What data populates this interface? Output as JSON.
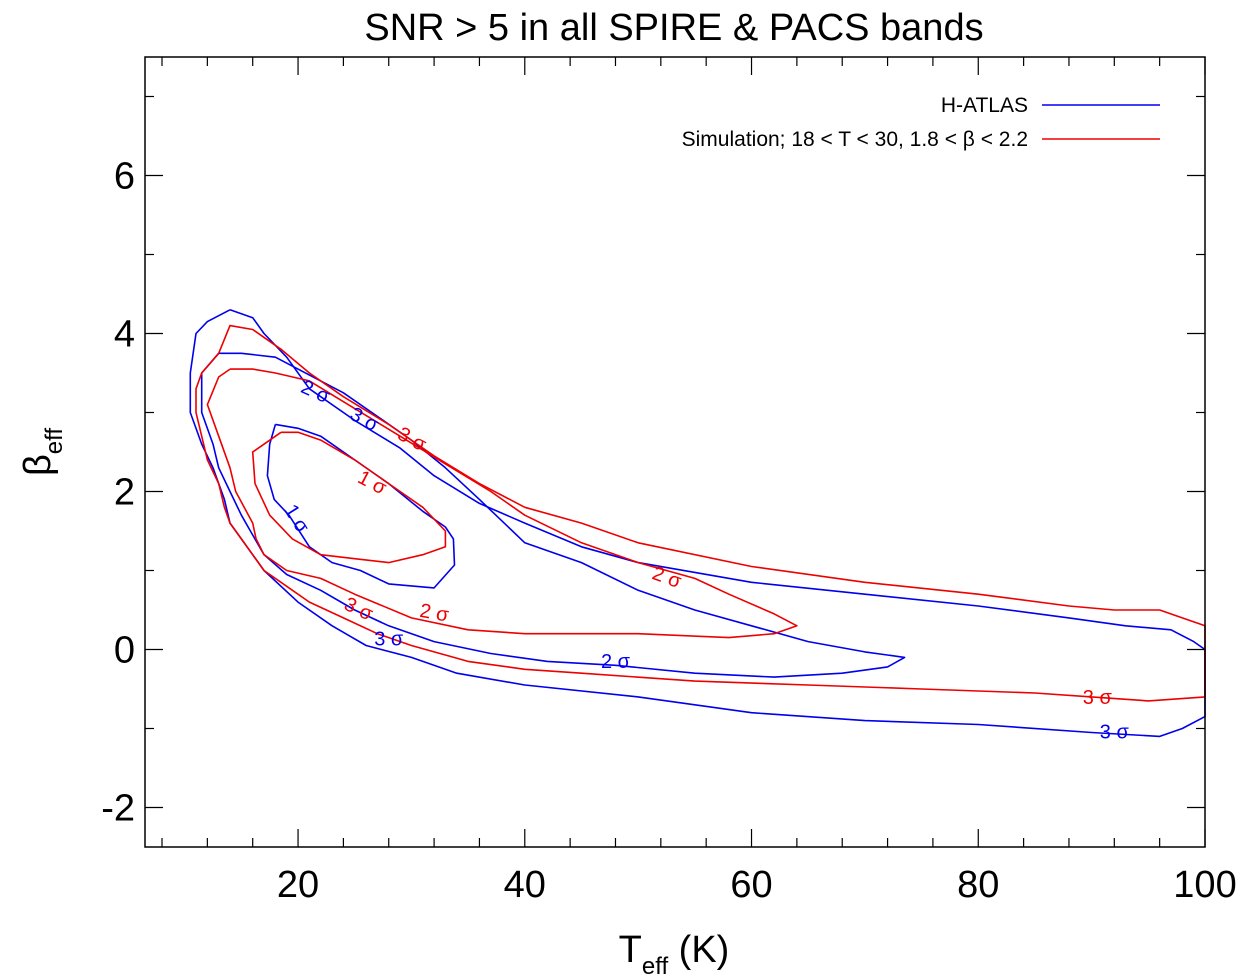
{
  "chart_data": {
    "type": "line",
    "title": "SNR > 5 in all SPIRE & PACS bands",
    "xlabel": {
      "main": "T",
      "sub": "eff",
      "suffix": " (K)"
    },
    "ylabel": {
      "main": "β",
      "sub": "eff"
    },
    "xlim": [
      6.5,
      100
    ],
    "ylim": [
      -2.5,
      7.5
    ],
    "x_ticks": [
      20,
      40,
      60,
      80,
      100
    ],
    "y_ticks": [
      -2,
      0,
      2,
      4,
      6
    ],
    "x_minor_step": 4,
    "y_minor_step": 1,
    "grid": false,
    "legend_position": "top-right",
    "colors": {
      "h_atlas": "#0000ee",
      "simulation": "#ee0000"
    },
    "series": [
      {
        "name": "H-ATLAS",
        "color_key": "h_atlas",
        "contours": [
          {
            "level": "1 σ",
            "points": [
              [
                18,
                2.85
              ],
              [
                17.5,
                2.6
              ],
              [
                17.3,
                2.2
              ],
              [
                17.9,
                1.9
              ],
              [
                19.2,
                1.7
              ],
              [
                21,
                1.3
              ],
              [
                23,
                1.1
              ],
              [
                25.5,
                1.0
              ],
              [
                28,
                0.83
              ],
              [
                32,
                0.78
              ],
              [
                33.8,
                1.07
              ],
              [
                33.7,
                1.4
              ],
              [
                33,
                1.55
              ],
              [
                31,
                1.75
              ],
              [
                28,
                2.1
              ],
              [
                25,
                2.4
              ],
              [
                22,
                2.7
              ],
              [
                20,
                2.8
              ],
              [
                18,
                2.85
              ]
            ]
          },
          {
            "level": "2 σ",
            "points": [
              [
                13,
                3.75
              ],
              [
                11.5,
                3.5
              ],
              [
                11.5,
                3.0
              ],
              [
                12.5,
                2.6
              ],
              [
                13,
                2.3
              ],
              [
                14,
                2.0
              ],
              [
                15,
                1.7
              ],
              [
                15.8,
                1.5
              ],
              [
                17,
                1.2
              ],
              [
                19,
                0.95
              ],
              [
                22,
                0.75
              ],
              [
                25,
                0.5
              ],
              [
                28,
                0.3
              ],
              [
                32,
                0.1
              ],
              [
                37,
                -0.05
              ],
              [
                42,
                -0.15
              ],
              [
                48,
                -0.2
              ],
              [
                55,
                -0.3
              ],
              [
                62,
                -0.35
              ],
              [
                68,
                -0.3
              ],
              [
                72,
                -0.22
              ],
              [
                73.5,
                -0.1
              ],
              [
                70,
                -0.03
              ],
              [
                65,
                0.1
              ],
              [
                60,
                0.3
              ],
              [
                55,
                0.5
              ],
              [
                50,
                0.75
              ],
              [
                45,
                1.1
              ],
              [
                40,
                1.35
              ],
              [
                36,
                1.9
              ],
              [
                33,
                2.3
              ],
              [
                30,
                2.65
              ],
              [
                27,
                2.95
              ],
              [
                24,
                3.25
              ],
              [
                20,
                3.55
              ],
              [
                18,
                3.7
              ],
              [
                15,
                3.75
              ],
              [
                13,
                3.75
              ]
            ]
          },
          {
            "level": "3 σ",
            "points": [
              [
                14,
                4.3
              ],
              [
                12,
                4.15
              ],
              [
                11,
                4.0
              ],
              [
                10.5,
                3.5
              ],
              [
                10.5,
                3.0
              ],
              [
                11.5,
                2.6
              ],
              [
                12.5,
                2.3
              ],
              [
                13.5,
                1.9
              ],
              [
                14,
                1.6
              ],
              [
                15.5,
                1.3
              ],
              [
                17,
                1.0
              ],
              [
                20,
                0.6
              ],
              [
                23,
                0.3
              ],
              [
                26,
                0.05
              ],
              [
                30,
                -0.1
              ],
              [
                34,
                -0.3
              ],
              [
                40,
                -0.45
              ],
              [
                50,
                -0.6
              ],
              [
                60,
                -0.8
              ],
              [
                70,
                -0.9
              ],
              [
                80,
                -0.95
              ],
              [
                90,
                -1.05
              ],
              [
                96,
                -1.1
              ],
              [
                98,
                -1.0
              ],
              [
                100,
                -0.85
              ],
              [
                100,
                0.0
              ],
              [
                99,
                0.1
              ],
              [
                97,
                0.25
              ],
              [
                93,
                0.3
              ],
              [
                88,
                0.4
              ],
              [
                80,
                0.55
              ],
              [
                70,
                0.7
              ],
              [
                60,
                0.85
              ],
              [
                50,
                1.1
              ],
              [
                45,
                1.3
              ],
              [
                40,
                1.6
              ],
              [
                36,
                1.85
              ],
              [
                32,
                2.2
              ],
              [
                29,
                2.55
              ],
              [
                25,
                2.9
              ],
              [
                21,
                3.3
              ],
              [
                19,
                3.7
              ],
              [
                17,
                4.0
              ],
              [
                16,
                4.2
              ],
              [
                14,
                4.3
              ]
            ]
          }
        ],
        "labels": [
          {
            "text": "1 σ",
            "x": 19.8,
            "y": 1.65,
            "angle": 58
          },
          {
            "text": "2 σ",
            "x": 21.5,
            "y": 3.25,
            "angle": 24
          },
          {
            "text": "3 σ",
            "x": 25.8,
            "y": 2.9,
            "angle": 28
          },
          {
            "text": "2 σ",
            "x": 48,
            "y": -0.17,
            "angle": 0
          },
          {
            "text": "3 σ",
            "x": 28,
            "y": 0.12,
            "angle": 0
          },
          {
            "text": "3 σ",
            "x": 92,
            "y": -1.06,
            "angle": 0
          }
        ]
      },
      {
        "name": "Simulation; 18 < T < 30, 1.8 < β < 2.2",
        "color_key": "simulation",
        "contours": [
          {
            "level": "1 σ",
            "points": [
              [
                18.5,
                2.75
              ],
              [
                16,
                2.5
              ],
              [
                16.2,
                2.1
              ],
              [
                17.5,
                1.7
              ],
              [
                19.5,
                1.4
              ],
              [
                22,
                1.2
              ],
              [
                25,
                1.15
              ],
              [
                28,
                1.1
              ],
              [
                31,
                1.2
              ],
              [
                33,
                1.3
              ],
              [
                33,
                1.5
              ],
              [
                31,
                1.8
              ],
              [
                28,
                2.1
              ],
              [
                25,
                2.4
              ],
              [
                22,
                2.65
              ],
              [
                20,
                2.75
              ],
              [
                18.5,
                2.75
              ]
            ]
          },
          {
            "level": "2 σ",
            "points": [
              [
                14,
                3.55
              ],
              [
                13,
                3.45
              ],
              [
                12,
                3.1
              ],
              [
                13,
                2.7
              ],
              [
                14,
                2.3
              ],
              [
                14.5,
                2.0
              ],
              [
                16,
                1.6
              ],
              [
                16.3,
                1.4
              ],
              [
                17,
                1.2
              ],
              [
                19,
                1.0
              ],
              [
                22,
                0.9
              ],
              [
                25,
                0.7
              ],
              [
                30,
                0.4
              ],
              [
                35,
                0.25
              ],
              [
                40,
                0.2
              ],
              [
                50,
                0.2
              ],
              [
                58,
                0.15
              ],
              [
                62,
                0.2
              ],
              [
                64,
                0.3
              ],
              [
                62,
                0.45
              ],
              [
                58,
                0.7
              ],
              [
                55,
                0.9
              ],
              [
                50,
                1.1
              ],
              [
                45,
                1.35
              ],
              [
                40,
                1.7
              ],
              [
                37,
                2.0
              ],
              [
                33,
                2.35
              ],
              [
                29,
                2.7
              ],
              [
                25,
                3.05
              ],
              [
                21,
                3.4
              ],
              [
                18,
                3.5
              ],
              [
                16,
                3.55
              ],
              [
                14,
                3.55
              ]
            ]
          },
          {
            "level": "3 σ",
            "points": [
              [
                13,
                3.75
              ],
              [
                11.5,
                3.5
              ],
              [
                11,
                3.3
              ],
              [
                11,
                3.0
              ],
              [
                11.5,
                2.7
              ],
              [
                12,
                2.4
              ],
              [
                13,
                2.1
              ],
              [
                13.5,
                1.8
              ],
              [
                14,
                1.6
              ],
              [
                15,
                1.4
              ],
              [
                16,
                1.2
              ],
              [
                17,
                1.0
              ],
              [
                19,
                0.8
              ],
              [
                21,
                0.6
              ],
              [
                24,
                0.4
              ],
              [
                27,
                0.2
              ],
              [
                30,
                0.05
              ],
              [
                35,
                -0.15
              ],
              [
                40,
                -0.25
              ],
              [
                45,
                -0.3
              ],
              [
                55,
                -0.4
              ],
              [
                65,
                -0.45
              ],
              [
                75,
                -0.5
              ],
              [
                85,
                -0.55
              ],
              [
                90,
                -0.6
              ],
              [
                95,
                -0.65
              ],
              [
                100,
                -0.6
              ],
              [
                100,
                0.3
              ],
              [
                98,
                0.4
              ],
              [
                96,
                0.5
              ],
              [
                92,
                0.5
              ],
              [
                88,
                0.55
              ],
              [
                80,
                0.7
              ],
              [
                70,
                0.85
              ],
              [
                60,
                1.05
              ],
              [
                50,
                1.35
              ],
              [
                45,
                1.6
              ],
              [
                40,
                1.8
              ],
              [
                36,
                2.1
              ],
              [
                32,
                2.45
              ],
              [
                28,
                2.85
              ],
              [
                24,
                3.2
              ],
              [
                21,
                3.5
              ],
              [
                18.5,
                3.8
              ],
              [
                16,
                4.05
              ],
              [
                14,
                4.1
              ],
              [
                13,
                3.75
              ]
            ]
          }
        ],
        "labels": [
          {
            "text": "1 σ",
            "x": 26.5,
            "y": 2.1,
            "angle": 28
          },
          {
            "text": "3 σ",
            "x": 30,
            "y": 2.65,
            "angle": 28
          },
          {
            "text": "2 σ",
            "x": 52.5,
            "y": 0.9,
            "angle": 20
          },
          {
            "text": "2 σ",
            "x": 32,
            "y": 0.45,
            "angle": 10
          },
          {
            "text": "3 σ",
            "x": 25.3,
            "y": 0.5,
            "angle": 25
          },
          {
            "text": "3 σ",
            "x": 90.5,
            "y": -0.62,
            "angle": 0
          }
        ]
      }
    ]
  }
}
